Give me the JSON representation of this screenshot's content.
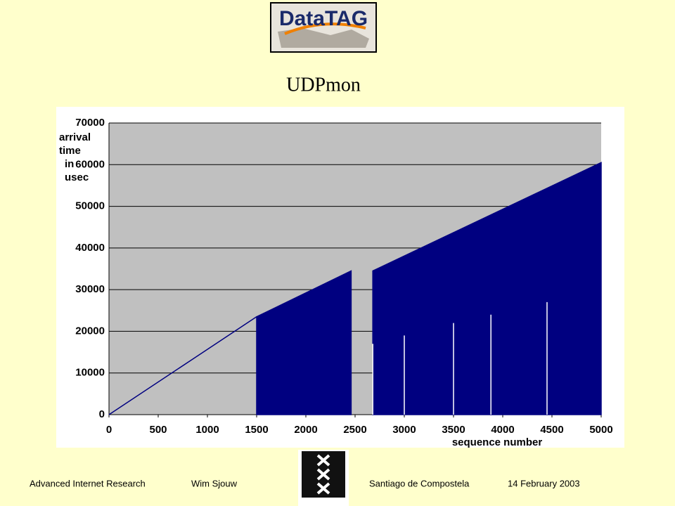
{
  "logo_text": "DataTAG",
  "chart_data": {
    "type": "line",
    "title": "UDPmon",
    "ylabel_lines": [
      "arrival",
      "time",
      "in",
      "usec"
    ],
    "xlabel": "sequence number",
    "series": [
      {
        "color": "#000080",
        "fill": false,
        "x": [
          0,
          1500
        ],
        "values": [
          0,
          23500
        ]
      },
      {
        "color": "#000080",
        "fill": true,
        "x": [
          1500,
          2460,
          2470,
          2680,
          5000
        ],
        "values": [
          23500,
          34500,
          null,
          34500,
          60500
        ]
      },
      {
        "color": "#ffffff",
        "fill": false,
        "impulse": true,
        "x": [
          2680,
          3000,
          3500,
          3880,
          4450
        ],
        "values": [
          17000,
          19000,
          22000,
          24000,
          27000
        ]
      }
    ],
    "xlim": [
      0,
      5000
    ],
    "xticks": [
      0,
      500,
      1000,
      1500,
      2000,
      2500,
      3000,
      3500,
      4000,
      4500,
      5000
    ],
    "ylim": [
      0,
      70000
    ],
    "yticks": [
      0,
      10000,
      20000,
      30000,
      40000,
      50000,
      60000,
      70000
    ],
    "grid": true
  },
  "footer": {
    "left": "Advanced Internet Research",
    "author": "Wim Sjouw",
    "place": "Santiago de Compostela",
    "date": "14 February 2003"
  }
}
